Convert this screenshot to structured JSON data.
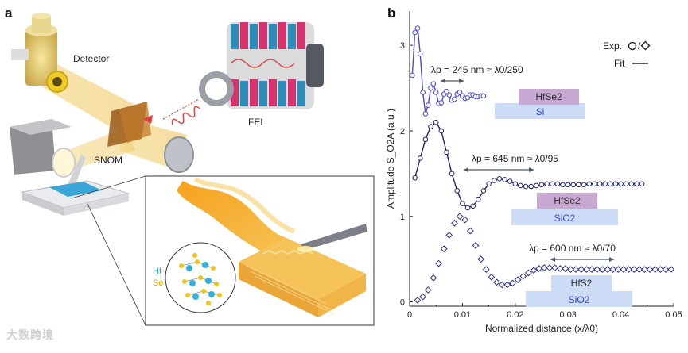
{
  "figure": {
    "panel_a": {
      "label": "a",
      "detector_label": "Detector",
      "fel_label": "FEL",
      "snom_label": "SNOM",
      "hf_label": "Hf",
      "se_label": "Se"
    },
    "panel_b": {
      "label": "b"
    },
    "watermark": "大数跨境"
  },
  "chart_data": {
    "type": "scatter",
    "xlabel": "Normalized distance (x/λ0)",
    "ylabel": "Amplitude S_O2A (a.u.)",
    "xlim": [
      0,
      0.05
    ],
    "ylim": [
      -0.05,
      3.4
    ],
    "xticks": [
      "0",
      "0.01",
      "0.02",
      "0.03",
      "0.04",
      "0.05"
    ],
    "yticks": [
      "0",
      "1",
      "2",
      "3"
    ],
    "legend": {
      "exp_label": "Exp.",
      "fit_label": "Fit"
    },
    "colors": {
      "hfse2_si": "#4b4bc8",
      "hfse2_sio2": "#1f2470",
      "hfs2_sio2": "#2c2f8a"
    },
    "series": [
      {
        "name": "HfSe2/Si",
        "marker": "circle",
        "annotation": "λp = 245 nm ≈ λ0/250",
        "layer_top": "HfSe2",
        "layer_bottom": "Si",
        "x": [
          0.0005,
          0.001,
          0.0015,
          0.002,
          0.0025,
          0.003,
          0.0035,
          0.004,
          0.0045,
          0.005,
          0.0055,
          0.006,
          0.0065,
          0.007,
          0.0075,
          0.008,
          0.0085,
          0.009,
          0.0095,
          0.01,
          0.0105,
          0.011,
          0.0115,
          0.012,
          0.0125,
          0.013,
          0.0135,
          0.014
        ],
        "y": [
          2.65,
          3.15,
          3.2,
          2.9,
          2.45,
          2.2,
          2.3,
          2.5,
          2.55,
          2.45,
          2.32,
          2.33,
          2.43,
          2.46,
          2.42,
          2.36,
          2.37,
          2.43,
          2.45,
          2.41,
          2.38,
          2.39,
          2.42,
          2.42,
          2.4,
          2.4,
          2.41,
          2.41
        ]
      },
      {
        "name": "HfSe2/SiO2",
        "marker": "circle",
        "annotation": "λp = 645 nm ≈ λ0/95",
        "layer_top": "HfSe2",
        "layer_bottom": "SiO2",
        "x": [
          0.001,
          0.002,
          0.003,
          0.004,
          0.005,
          0.006,
          0.007,
          0.008,
          0.009,
          0.01,
          0.011,
          0.012,
          0.013,
          0.014,
          0.015,
          0.016,
          0.017,
          0.018,
          0.019,
          0.02,
          0.021,
          0.022,
          0.023,
          0.024,
          0.025,
          0.026,
          0.027,
          0.028,
          0.029,
          0.03,
          0.031,
          0.032,
          0.033,
          0.034,
          0.035,
          0.036,
          0.037,
          0.038,
          0.039,
          0.04,
          0.041,
          0.042,
          0.043,
          0.044
        ],
        "y": [
          1.45,
          1.68,
          1.9,
          2.05,
          2.1,
          2.0,
          1.75,
          1.5,
          1.3,
          1.15,
          1.1,
          1.12,
          1.2,
          1.3,
          1.38,
          1.42,
          1.44,
          1.43,
          1.41,
          1.38,
          1.36,
          1.35,
          1.35,
          1.36,
          1.37,
          1.38,
          1.38,
          1.38,
          1.37,
          1.37,
          1.37,
          1.37,
          1.37,
          1.38,
          1.38,
          1.38,
          1.38,
          1.38,
          1.38,
          1.38,
          1.38,
          1.38,
          1.38,
          1.38
        ]
      },
      {
        "name": "HfS2/SiO2",
        "marker": "diamond",
        "annotation": "λp = 600 nm ≈ λ0/70",
        "layer_top": "HfS2",
        "layer_bottom": "SiO2",
        "x": [
          0.0015,
          0.0025,
          0.0035,
          0.0045,
          0.0055,
          0.0065,
          0.0075,
          0.0085,
          0.0095,
          0.0105,
          0.0115,
          0.0125,
          0.0135,
          0.0145,
          0.0155,
          0.0165,
          0.0175,
          0.0185,
          0.0195,
          0.0205,
          0.0215,
          0.0225,
          0.0235,
          0.0245,
          0.0255,
          0.0265,
          0.0275,
          0.0285,
          0.0295,
          0.0305,
          0.0315,
          0.0325,
          0.0335,
          0.0345,
          0.0355,
          0.0365,
          0.0375,
          0.0385,
          0.0395,
          0.0405,
          0.0415,
          0.0425,
          0.0435,
          0.0445,
          0.0455,
          0.0465,
          0.0475,
          0.0485,
          0.0495
        ],
        "y": [
          0.02,
          0.06,
          0.14,
          0.28,
          0.45,
          0.62,
          0.78,
          0.92,
          1.0,
          0.96,
          0.83,
          0.66,
          0.5,
          0.38,
          0.29,
          0.23,
          0.2,
          0.2,
          0.22,
          0.26,
          0.3,
          0.34,
          0.37,
          0.39,
          0.4,
          0.4,
          0.4,
          0.39,
          0.39,
          0.38,
          0.38,
          0.38,
          0.38,
          0.38,
          0.38,
          0.38,
          0.38,
          0.38,
          0.38,
          0.38,
          0.38,
          0.38,
          0.38,
          0.38,
          0.38,
          0.38,
          0.38,
          0.38,
          0.38
        ]
      }
    ]
  }
}
